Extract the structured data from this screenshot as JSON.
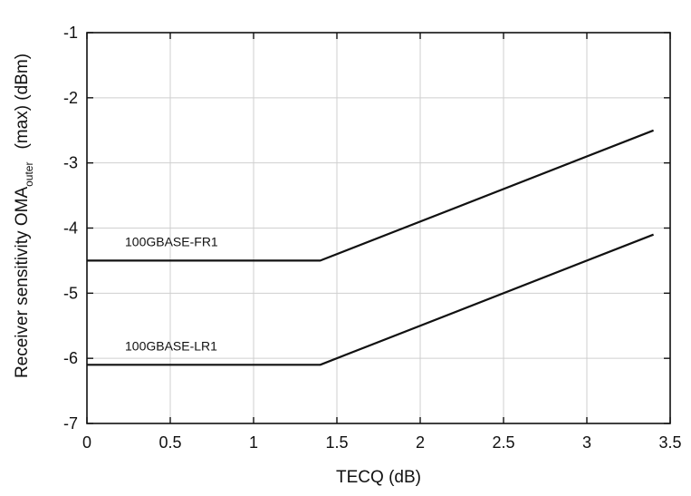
{
  "chart_data": {
    "type": "line",
    "xlabel": "TECQ (dB)",
    "ylabel": {
      "prefix": "Receiver sensitivity OMA",
      "subscript": "outer",
      "suffix": "(max) (dBm)"
    },
    "xlim": [
      0,
      3.5
    ],
    "ylim": [
      -7,
      -1
    ],
    "x_ticks": [
      "0",
      "0.5",
      "1",
      "1.5",
      "2",
      "2.5",
      "3",
      "3.5"
    ],
    "y_ticks": [
      "-1",
      "-2",
      "-3",
      "-4",
      "-5",
      "-6",
      "-7"
    ],
    "grid": true,
    "series": [
      {
        "name": "100GBASE-FR1",
        "points": [
          [
            0,
            -4.5
          ],
          [
            1.4,
            -4.5
          ],
          [
            3.4,
            -2.5
          ]
        ]
      },
      {
        "name": "100GBASE-LR1",
        "points": [
          [
            0,
            -6.1
          ],
          [
            1.4,
            -6.1
          ],
          [
            3.4,
            -4.1
          ]
        ]
      }
    ]
  }
}
